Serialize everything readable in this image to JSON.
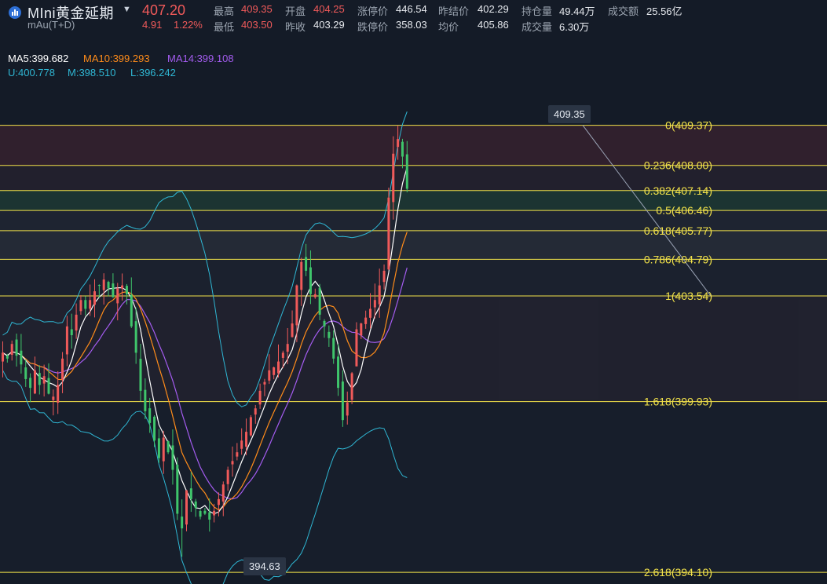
{
  "header": {
    "title": "MIni黄金延期",
    "code": "mAu(T+D)",
    "price": "407.20",
    "change": "4.91",
    "change_pct": "1.22%",
    "stats": [
      {
        "label": "最高",
        "value": "409.35",
        "tone": "red"
      },
      {
        "label": "开盘",
        "value": "404.25",
        "tone": "red"
      },
      {
        "label": "涨停价",
        "value": "446.54",
        "tone": "plain"
      },
      {
        "label": "昨结价",
        "value": "402.29",
        "tone": "plain"
      },
      {
        "label": "持仓量",
        "value": "49.44万",
        "tone": "plain"
      },
      {
        "label": "成交额",
        "value": "25.56亿",
        "tone": "plain"
      },
      {
        "label": "最低",
        "value": "403.50",
        "tone": "red"
      },
      {
        "label": "昨收",
        "value": "403.29",
        "tone": "plain"
      },
      {
        "label": "跌停价",
        "value": "358.03",
        "tone": "plain"
      },
      {
        "label": "均价",
        "value": "405.86",
        "tone": "plain"
      },
      {
        "label": "成交量",
        "value": "6.30万",
        "tone": "plain"
      }
    ]
  },
  "indicators": {
    "ma5": "MA5:399.682",
    "ma10": "MA10:399.293",
    "ma14": "MA14:399.108",
    "u": "U:400.778",
    "m": "M:398.510",
    "l": "L:396.242"
  },
  "colors": {
    "ma5": "#ffffff",
    "ma10": "#ff8c1a",
    "ma14": "#a45cf0",
    "boll": "#2fb7d4",
    "up": "#f05a5a",
    "down": "#3fc56b",
    "fib": "#f2e24a"
  },
  "tooltips": {
    "high": "409.35",
    "low": "394.63"
  },
  "chart_data": {
    "type": "candlestick",
    "ylim": [
      393.7,
      410.7
    ],
    "fibonacci": [
      {
        "level": "0",
        "value": 409.37,
        "label": "0(409.37)"
      },
      {
        "level": "0.236",
        "value": 408.0,
        "label": "0.236(408.00)"
      },
      {
        "level": "0.382",
        "value": 407.14,
        "label": "0.382(407.14)"
      },
      {
        "level": "0.5",
        "value": 406.46,
        "label": "0.5(406.46)"
      },
      {
        "level": "0.618",
        "value": 405.77,
        "label": "0.618(405.77)"
      },
      {
        "level": "0.786",
        "value": 404.79,
        "label": "0.786(404.79)"
      },
      {
        "level": "1",
        "value": 403.54,
        "label": "1(403.54)"
      },
      {
        "level": "1.618",
        "value": 399.93,
        "label": "1.618(399.93)"
      },
      {
        "level": "2.618",
        "value": 394.1,
        "label": "2.618(394.10)"
      }
    ],
    "price_path": [
      401.6,
      401.4,
      401.9,
      401.5,
      401.2,
      400.7,
      400.4,
      401.0,
      400.5,
      400.8,
      400.2,
      400.1,
      400.5,
      401.4,
      402.5,
      402.2,
      402.9,
      403.4,
      403.1,
      403.4,
      403.7,
      403.9,
      404.1,
      403.8,
      403.5,
      403.8,
      403.9,
      403.6,
      402.5,
      401.6,
      400.3,
      399.6,
      399.2,
      398.6,
      398.0,
      398.7,
      398.2,
      397.6,
      396.1,
      395.6,
      396.9,
      396.6,
      396.3,
      396.0,
      396.1,
      395.9,
      396.2,
      396.6,
      397.1,
      397.6,
      397.9,
      398.2,
      398.6,
      398.9,
      399.4,
      399.7,
      400.3,
      400.6,
      401.0,
      401.1,
      401.3,
      401.6,
      401.9,
      402.6,
      403.9,
      404.7,
      404.4,
      403.6,
      403.6,
      402.9,
      402.5,
      402.1,
      401.4,
      400.4,
      399.3,
      399.9,
      400.9,
      402.4,
      402.6,
      402.8,
      403.1,
      403.4,
      403.9,
      404.4,
      406.9,
      408.4,
      408.9,
      408.3,
      407.2
    ]
  }
}
